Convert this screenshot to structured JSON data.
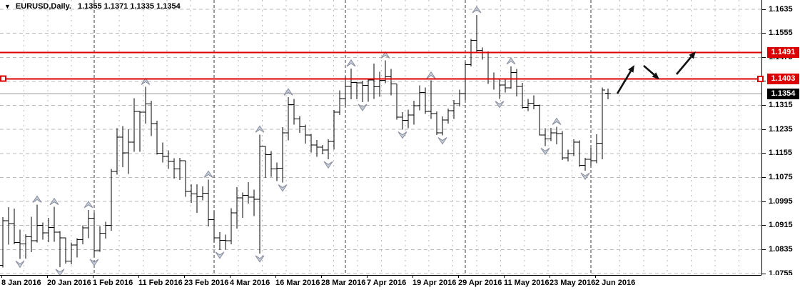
{
  "window": {
    "dropdown_icon": "▼",
    "title": "EURUSD,Daily.",
    "ohlc_readout": "1.1355 1.1371 1.1335 1.1354"
  },
  "axes": {
    "y_ticks": [
      "1.1635",
      "1.1555",
      "1.1475",
      "1.1395",
      "1.1315",
      "1.1235",
      "1.1155",
      "1.1075",
      "1.0995",
      "1.0915",
      "1.0835",
      "1.0755"
    ],
    "x_labels": [
      {
        "text": "8 Jan 2016",
        "bar": 1
      },
      {
        "text": "20 Jan 2016",
        "bar": 9
      },
      {
        "text": "1 Feb 2016",
        "bar": 17
      },
      {
        "text": "11 Feb 2016",
        "bar": 25
      },
      {
        "text": "23 Feb 2016",
        "bar": 33
      },
      {
        "text": "4 Mar 2016",
        "bar": 41
      },
      {
        "text": "16 Mar 2016",
        "bar": 49
      },
      {
        "text": "28 Mar 2016",
        "bar": 57
      },
      {
        "text": "7 Apr 2016",
        "bar": 65
      },
      {
        "text": "19 Apr 2016",
        "bar": 73
      },
      {
        "text": "29 Apr 2016",
        "bar": 81
      },
      {
        "text": "11 May 2016",
        "bar": 89
      },
      {
        "text": "23 May 2016",
        "bar": 97
      },
      {
        "text": "2 Jun 2016",
        "bar": 105
      }
    ]
  },
  "price_markers": [
    {
      "label": "1.1491",
      "value": 1.1491,
      "style": "red-line",
      "selected": false
    },
    {
      "label": "1.1403",
      "value": 1.1403,
      "style": "red-line",
      "selected": true
    },
    {
      "label": "1.1354",
      "value": 1.1354,
      "style": "current-price",
      "selected": false
    }
  ],
  "colors": {
    "background": "#ffffff",
    "bar": "#000000",
    "grid": "#b9b9b9",
    "month_grid": "#3a3a3a",
    "hline_red": "#dd0000",
    "current_price_line": "#9b9b9b",
    "fractal_fill": "#c8cdd7",
    "fractal_stroke": "#878f9e",
    "marker_text": "#ffffff",
    "current_label_bg": "#000000",
    "annotation_arrow": "#111111"
  },
  "chart_data": {
    "type": "bar",
    "subtype": "ohlc-bars",
    "symbol": "EURUSD",
    "timeframe": "Daily",
    "title": "EURUSD,Daily. 1.1355 1.1371 1.1335 1.1354",
    "ylim": [
      1.0755,
      1.1635
    ],
    "y_step": 0.008,
    "grid": true,
    "current_bar": {
      "open": "1.1355",
      "high": "1.1371",
      "low": "1.1335",
      "close": "1.1354"
    },
    "current_price": 1.1354,
    "hlines": [
      1.1491,
      1.1403
    ],
    "month_start_indices": [
      17,
      38,
      61,
      82,
      104
    ],
    "bars": [
      [
        1.0782,
        1.0943,
        1.0775,
        1.0931
      ],
      [
        1.0931,
        1.0976,
        1.0851,
        1.0921
      ],
      [
        1.0921,
        1.0971,
        1.0853,
        1.0858
      ],
      [
        1.0858,
        1.0901,
        1.0804,
        1.0854
      ],
      [
        1.0854,
        1.0886,
        1.0805,
        1.0878
      ],
      [
        1.0878,
        1.0944,
        1.0826,
        1.0864
      ],
      [
        1.0864,
        1.0985,
        1.0859,
        1.0916
      ],
      [
        1.0916,
        1.0925,
        1.0868,
        1.0891
      ],
      [
        1.0891,
        1.094,
        1.086,
        1.0908
      ],
      [
        1.0908,
        1.0977,
        1.0861,
        1.0893
      ],
      [
        1.0893,
        1.0896,
        1.0777,
        1.0874
      ],
      [
        1.0874,
        1.0875,
        1.0788,
        1.0797
      ],
      [
        1.0797,
        1.0858,
        1.0786,
        1.085
      ],
      [
        1.085,
        1.0873,
        1.0809,
        1.0868
      ],
      [
        1.0868,
        1.0916,
        1.0852,
        1.0907
      ],
      [
        1.0907,
        1.0967,
        1.0873,
        1.0939
      ],
      [
        1.0939,
        1.0957,
        1.081,
        1.0831
      ],
      [
        1.0831,
        1.0913,
        1.0827,
        1.0889
      ],
      [
        1.0889,
        1.0927,
        1.0871,
        1.0916
      ],
      [
        1.0916,
        1.1103,
        1.0898,
        1.1095
      ],
      [
        1.1095,
        1.1239,
        1.1085,
        1.1209
      ],
      [
        1.1209,
        1.1246,
        1.1109,
        1.1157
      ],
      [
        1.1157,
        1.1236,
        1.1087,
        1.1193
      ],
      [
        1.1193,
        1.1339,
        1.116,
        1.1295
      ],
      [
        1.1295,
        1.1296,
        1.116,
        1.1292
      ],
      [
        1.1292,
        1.1377,
        1.1254,
        1.132
      ],
      [
        1.132,
        1.133,
        1.1213,
        1.1254
      ],
      [
        1.1254,
        1.1264,
        1.1151,
        1.1156
      ],
      [
        1.1156,
        1.1191,
        1.1125,
        1.1145
      ],
      [
        1.1145,
        1.1165,
        1.1103,
        1.1128
      ],
      [
        1.1128,
        1.1139,
        1.1071,
        1.1103
      ],
      [
        1.1103,
        1.114,
        1.1066,
        1.1131
      ],
      [
        1.1131,
        1.1131,
        1.1011,
        1.1029
      ],
      [
        1.1029,
        1.1052,
        1.099,
        1.102
      ],
      [
        1.102,
        1.1052,
        1.0957,
        1.1011
      ],
      [
        1.1011,
        1.1045,
        1.0999,
        1.1022
      ],
      [
        1.1022,
        1.1068,
        1.0912,
        1.0934
      ],
      [
        1.0934,
        1.0963,
        1.086,
        1.0874
      ],
      [
        1.0874,
        1.0893,
        1.0834,
        1.0866
      ],
      [
        1.0866,
        1.0885,
        1.0835,
        1.0865
      ],
      [
        1.0865,
        1.0973,
        1.0853,
        1.0957
      ],
      [
        1.0957,
        1.1043,
        1.0905,
        1.1007
      ],
      [
        1.1007,
        1.1025,
        1.0941,
        1.1015
      ],
      [
        1.1015,
        1.1059,
        1.0988,
        1.1009
      ],
      [
        1.1009,
        1.1035,
        1.0946,
        1.1002
      ],
      [
        1.1002,
        1.1218,
        1.0822,
        1.1178
      ],
      [
        1.1178,
        1.118,
        1.1074,
        1.1151
      ],
      [
        1.1151,
        1.1163,
        1.1077,
        1.1104
      ],
      [
        1.1104,
        1.1125,
        1.1063,
        1.1106
      ],
      [
        1.1106,
        1.1243,
        1.1058,
        1.1223
      ],
      [
        1.1223,
        1.1342,
        1.1199,
        1.1318
      ],
      [
        1.1318,
        1.1336,
        1.1251,
        1.127
      ],
      [
        1.127,
        1.1279,
        1.1224,
        1.1244
      ],
      [
        1.1244,
        1.1251,
        1.1188,
        1.1216
      ],
      [
        1.1216,
        1.122,
        1.1158,
        1.1183
      ],
      [
        1.1183,
        1.12,
        1.1144,
        1.1176
      ],
      [
        1.1176,
        1.1183,
        1.1152,
        1.1167
      ],
      [
        1.1167,
        1.1202,
        1.1135,
        1.1195
      ],
      [
        1.1195,
        1.13,
        1.1168,
        1.1293
      ],
      [
        1.1293,
        1.1365,
        1.1283,
        1.1338
      ],
      [
        1.1338,
        1.1412,
        1.131,
        1.1378
      ],
      [
        1.1378,
        1.1438,
        1.1335,
        1.1391
      ],
      [
        1.1391,
        1.1393,
        1.1335,
        1.139
      ],
      [
        1.139,
        1.1397,
        1.1326,
        1.1382
      ],
      [
        1.1382,
        1.1404,
        1.1327,
        1.14
      ],
      [
        1.14,
        1.1454,
        1.1336,
        1.1377
      ],
      [
        1.1377,
        1.1427,
        1.1344,
        1.1398
      ],
      [
        1.1398,
        1.1465,
        1.1389,
        1.141
      ],
      [
        1.141,
        1.1437,
        1.1349,
        1.1387
      ],
      [
        1.1387,
        1.1387,
        1.1268,
        1.1276
      ],
      [
        1.1276,
        1.1292,
        1.1234,
        1.1265
      ],
      [
        1.1265,
        1.1301,
        1.1239,
        1.1283
      ],
      [
        1.1283,
        1.133,
        1.1251,
        1.1314
      ],
      [
        1.1314,
        1.1382,
        1.1298,
        1.1358
      ],
      [
        1.1358,
        1.1374,
        1.1286,
        1.1295
      ],
      [
        1.1295,
        1.1398,
        1.127,
        1.1288
      ],
      [
        1.1288,
        1.1295,
        1.1217,
        1.1224
      ],
      [
        1.1224,
        1.1278,
        1.1215,
        1.1266
      ],
      [
        1.1266,
        1.1305,
        1.1254,
        1.1297
      ],
      [
        1.1297,
        1.1333,
        1.127,
        1.1321
      ],
      [
        1.1321,
        1.1368,
        1.1312,
        1.1354
      ],
      [
        1.1354,
        1.1459,
        1.1333,
        1.1451
      ],
      [
        1.1451,
        1.1536,
        1.1445,
        1.1532
      ],
      [
        1.1532,
        1.1616,
        1.1493,
        1.1498
      ],
      [
        1.1498,
        1.1508,
        1.1467,
        1.149
      ],
      [
        1.149,
        1.1495,
        1.1387,
        1.1403
      ],
      [
        1.1403,
        1.1424,
        1.1368,
        1.1403
      ],
      [
        1.1403,
        1.1404,
        1.1336,
        1.1383
      ],
      [
        1.1383,
        1.1402,
        1.1358,
        1.1373
      ],
      [
        1.1373,
        1.1445,
        1.1371,
        1.1425
      ],
      [
        1.1425,
        1.1437,
        1.1345,
        1.1378
      ],
      [
        1.1378,
        1.139,
        1.1305,
        1.1308
      ],
      [
        1.1308,
        1.1337,
        1.1296,
        1.1322
      ],
      [
        1.1322,
        1.1349,
        1.1302,
        1.1315
      ],
      [
        1.1315,
        1.1318,
        1.1215,
        1.1217
      ],
      [
        1.1217,
        1.1239,
        1.118,
        1.1203
      ],
      [
        1.1203,
        1.124,
        1.1196,
        1.1224
      ],
      [
        1.1224,
        1.1244,
        1.1186,
        1.1221
      ],
      [
        1.1221,
        1.1229,
        1.1133,
        1.114
      ],
      [
        1.114,
        1.1168,
        1.1129,
        1.1154
      ],
      [
        1.1154,
        1.1202,
        1.1146,
        1.1193
      ],
      [
        1.1193,
        1.1198,
        1.111,
        1.1115
      ],
      [
        1.1115,
        1.114,
        1.1097,
        1.1136
      ],
      [
        1.1136,
        1.1174,
        1.1112,
        1.1131
      ],
      [
        1.1131,
        1.1219,
        1.1122,
        1.1189
      ],
      [
        1.1189,
        1.1374,
        1.1135,
        1.1366
      ],
      [
        1.1355,
        1.1371,
        1.1335,
        1.1354
      ]
    ],
    "annotations": [
      {
        "name": "trend-arrow-up-1",
        "x1": 865,
        "y1": 131,
        "x2": 889,
        "y2": 91
      },
      {
        "name": "trend-arrow-down",
        "x1": 902,
        "y1": 92,
        "x2": 924,
        "y2": 111
      },
      {
        "name": "trend-arrow-up-2",
        "x1": 948,
        "y1": 104,
        "x2": 975,
        "y2": 72
      }
    ]
  }
}
